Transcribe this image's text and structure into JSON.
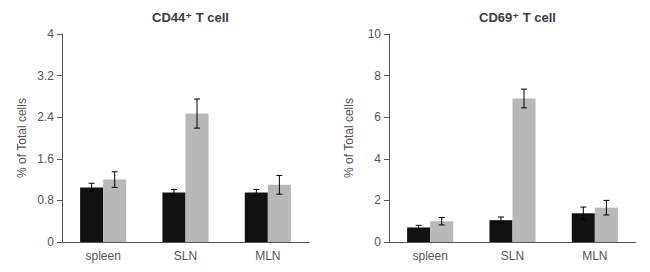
{
  "chart_data": [
    {
      "type": "bar",
      "title": "CD44⁺ T cell",
      "ylabel": "% of Total cells",
      "categories": [
        "spleen",
        "SLN",
        "MLN"
      ],
      "series": [
        {
          "color": "#111111",
          "values": [
            1.05,
            0.95,
            0.95
          ],
          "errors": [
            0.08,
            0.06,
            0.06
          ]
        },
        {
          "color": "#b8b8b8",
          "values": [
            1.2,
            2.47,
            1.1
          ],
          "errors": [
            0.15,
            0.28,
            0.18
          ]
        }
      ],
      "ylim": [
        0,
        4.0
      ],
      "yticks": [
        0,
        0.8,
        1.6,
        2.4,
        3.2,
        4.0
      ],
      "grid": false
    },
    {
      "type": "bar",
      "title": "CD69⁺ T cell",
      "ylabel": "% of Total cells",
      "categories": [
        "spleen",
        "SLN",
        "MLN"
      ],
      "series": [
        {
          "color": "#111111",
          "values": [
            0.7,
            1.05,
            1.38
          ],
          "errors": [
            0.1,
            0.15,
            0.3
          ]
        },
        {
          "color": "#b8b8b8",
          "values": [
            1.0,
            6.9,
            1.65
          ],
          "errors": [
            0.18,
            0.45,
            0.35
          ]
        }
      ],
      "ylim": [
        0,
        10
      ],
      "yticks": [
        0,
        2,
        4,
        6,
        8,
        10
      ],
      "grid": false
    }
  ]
}
